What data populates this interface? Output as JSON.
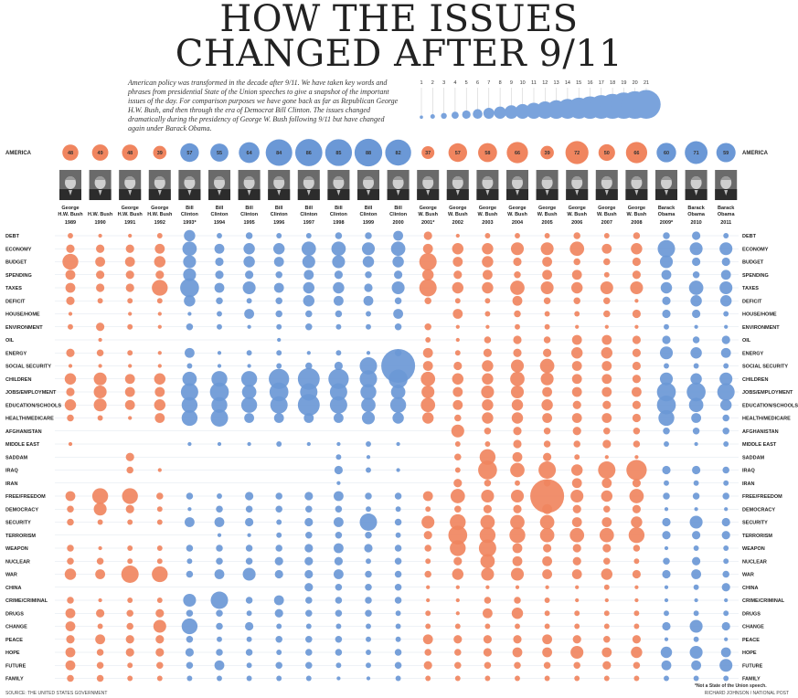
{
  "title_line1": "HOW THE ISSUES",
  "title_line2": "CHANGED AFTER 9/11",
  "intro": "American policy was transformed in the decade after 9/11. We have taken key words and phrases from presidential State of the Union speeches to give a snapshot of the important issues of the day. For comparison purposes we have gone back as far as Republican George H.W. Bush, and then through the era of Democrat Bill Clinton. The issues changed dramatically during the presidency of George W. Bush following 9/11 but have changed again under Barack Obama.",
  "source": "SOURCE: THE UNITED STATES GOVERNMENT",
  "credit": "RICHARD JOHNSON / NATIONAL POST",
  "footnote": "*Not a State of the Union speech.",
  "colors": {
    "republican": "#f0855f",
    "democrat": "#6b98d6",
    "scale": "#7aa3dc"
  },
  "chart_data": {
    "type": "bubble-matrix",
    "title": "HOW THE ISSUES CHANGED AFTER 9/11",
    "size_legend": [
      1,
      2,
      3,
      4,
      5,
      6,
      7,
      8,
      9,
      10,
      11,
      12,
      13,
      14,
      15,
      16,
      17,
      18,
      19,
      20,
      21
    ],
    "america_label": "AMERICA",
    "years": [
      "1989",
      "1990",
      "1991",
      "1992",
      "1993*",
      "1994",
      "1995",
      "1996",
      "1997",
      "1998",
      "1999",
      "2000",
      "2001*",
      "2002",
      "2003",
      "2004",
      "2005",
      "2006",
      "2007",
      "2008",
      "2009*",
      "2010",
      "2011"
    ],
    "presidents": [
      {
        "first": "George",
        "last": "H.W. Bush"
      },
      {
        "first": "",
        "last": "H.W. Bush"
      },
      {
        "first": "George",
        "last": "H.W. Bush"
      },
      {
        "first": "George",
        "last": "H.W. Bush"
      },
      {
        "first": "Bill",
        "last": "Clinton"
      },
      {
        "first": "Bill",
        "last": "Clinton"
      },
      {
        "first": "Bill",
        "last": "Clinton"
      },
      {
        "first": "Bill",
        "last": "Clinton"
      },
      {
        "first": "Bill",
        "last": "Clinton"
      },
      {
        "first": "Bill",
        "last": "Clinton"
      },
      {
        "first": "Bill",
        "last": "Clinton"
      },
      {
        "first": "Bill",
        "last": "Clinton"
      },
      {
        "first": "George",
        "last": "W. Bush"
      },
      {
        "first": "George",
        "last": "W. Bush"
      },
      {
        "first": "George",
        "last": "W. Bush"
      },
      {
        "first": "George",
        "last": "W. Bush"
      },
      {
        "first": "George",
        "last": "W. Bush"
      },
      {
        "first": "George",
        "last": "W. Bush"
      },
      {
        "first": "George",
        "last": "W. Bush"
      },
      {
        "first": "George",
        "last": "W. Bush"
      },
      {
        "first": "Barack",
        "last": "Obama"
      },
      {
        "first": "Barack",
        "last": "Obama"
      },
      {
        "first": "Barack",
        "last": "Obama"
      }
    ],
    "party": [
      "R",
      "R",
      "R",
      "R",
      "D",
      "D",
      "D",
      "D",
      "D",
      "D",
      "D",
      "D",
      "R",
      "R",
      "R",
      "R",
      "R",
      "R",
      "R",
      "R",
      "D",
      "D",
      "D"
    ],
    "america_counts": [
      48,
      49,
      48,
      39,
      57,
      55,
      64,
      84,
      86,
      85,
      88,
      82,
      37,
      57,
      58,
      66,
      39,
      72,
      50,
      66,
      60,
      71,
      59
    ],
    "issues": [
      "DEBT",
      "ECONOMY",
      "BUDGET",
      "SPENDING",
      "TAXES",
      "DEFICIT",
      "HOUSE/HOME",
      "ENVIRONMENT",
      "OIL",
      "ENERGY",
      "SOCIAL SECURITY",
      "CHILDREN",
      "JOBS/EMPLOYMENT",
      "EDUCATION/SCHOOLS",
      "HEALTH/MEDICARE",
      "AFGHANISTAN",
      "MIDDLE EAST",
      "SADDAM",
      "IRAQ",
      "IRAN",
      "FREE/FREEDOM",
      "DEMOCRACY",
      "SECURITY",
      "TERRORISM",
      "WEAPON",
      "NUCLEAR",
      "WAR",
      "CHINA",
      "CRIME/CRIMINAL",
      "DRUGS",
      "CHANGE",
      "PEACE",
      "HOPE",
      "FUTURE",
      "FAMILY"
    ],
    "values": [
      [
        2,
        1,
        1,
        2,
        6,
        2,
        3,
        2,
        2,
        3,
        3,
        5,
        4,
        1,
        2,
        2,
        2,
        3,
        2,
        3,
        3,
        4,
        2
      ],
      [
        4,
        4,
        4,
        5,
        8,
        5,
        6,
        6,
        8,
        8,
        7,
        8,
        5,
        6,
        6,
        7,
        7,
        8,
        5,
        6,
        10,
        7,
        7
      ],
      [
        9,
        5,
        5,
        6,
        7,
        4,
        6,
        5,
        7,
        7,
        6,
        6,
        10,
        5,
        6,
        4,
        5,
        3,
        3,
        4,
        7,
        4,
        4
      ],
      [
        5,
        4,
        4,
        4,
        7,
        4,
        4,
        3,
        5,
        4,
        3,
        4,
        6,
        4,
        5,
        3,
        5,
        5,
        2,
        4,
        5,
        3,
        5
      ],
      [
        5,
        4,
        4,
        9,
        11,
        5,
        7,
        5,
        6,
        6,
        4,
        7,
        10,
        6,
        6,
        8,
        7,
        6,
        7,
        7,
        6,
        8,
        7
      ],
      [
        4,
        2,
        2,
        2,
        6,
        3,
        2,
        3,
        6,
        5,
        5,
        3,
        3,
        2,
        2,
        5,
        3,
        3,
        3,
        1,
        4,
        6,
        6
      ],
      [
        1,
        0,
        1,
        1,
        1,
        2,
        5,
        3,
        3,
        3,
        2,
        5,
        0,
        5,
        2,
        3,
        2,
        2,
        3,
        4,
        4,
        4,
        2
      ],
      [
        2,
        4,
        2,
        1,
        3,
        2,
        1,
        2,
        3,
        2,
        2,
        3,
        3,
        1,
        1,
        2,
        2,
        1,
        1,
        1,
        2,
        1,
        1
      ],
      [
        0,
        1,
        0,
        0,
        0,
        0,
        0,
        1,
        0,
        0,
        0,
        0,
        2,
        1,
        3,
        4,
        3,
        5,
        5,
        4,
        4,
        3,
        4
      ],
      [
        4,
        3,
        2,
        1,
        5,
        1,
        2,
        2,
        1,
        2,
        1,
        3,
        5,
        2,
        4,
        4,
        4,
        6,
        6,
        4,
        7,
        6,
        5
      ],
      [
        1,
        1,
        1,
        1,
        2,
        1,
        1,
        2,
        3,
        4,
        10,
        21,
        5,
        4,
        6,
        7,
        8,
        5,
        5,
        4,
        2,
        2,
        2
      ],
      [
        6,
        7,
        5,
        6,
        8,
        9,
        9,
        12,
        13,
        12,
        10,
        11,
        8,
        6,
        6,
        8,
        7,
        5,
        5,
        4,
        7,
        6,
        7
      ],
      [
        4,
        7,
        5,
        5,
        10,
        11,
        8,
        11,
        10,
        10,
        9,
        8,
        7,
        5,
        7,
        7,
        5,
        5,
        5,
        5,
        11,
        11,
        10
      ],
      [
        6,
        7,
        5,
        6,
        9,
        9,
        9,
        10,
        13,
        10,
        8,
        9,
        8,
        5,
        6,
        6,
        6,
        4,
        4,
        4,
        11,
        8,
        6
      ],
      [
        3,
        2,
        1,
        5,
        9,
        10,
        5,
        5,
        5,
        5,
        7,
        6,
        6,
        3,
        6,
        6,
        5,
        5,
        5,
        4,
        9,
        5,
        3
      ],
      [
        0,
        0,
        0,
        0,
        0,
        0,
        0,
        0,
        0,
        0,
        0,
        0,
        0,
        7,
        3,
        4,
        3,
        4,
        3,
        3,
        3,
        3,
        3
      ],
      [
        1,
        0,
        0,
        0,
        1,
        1,
        1,
        2,
        1,
        1,
        2,
        1,
        0,
        2,
        2,
        4,
        3,
        3,
        4,
        3,
        2,
        1,
        2
      ],
      [
        0,
        0,
        4,
        0,
        0,
        0,
        0,
        0,
        0,
        2,
        1,
        0,
        0,
        3,
        9,
        5,
        4,
        2,
        1,
        1,
        0,
        0,
        0
      ],
      [
        0,
        0,
        3,
        1,
        0,
        0,
        0,
        0,
        0,
        4,
        2,
        1,
        0,
        2,
        11,
        8,
        10,
        6,
        10,
        12,
        4,
        4,
        3
      ],
      [
        0,
        0,
        0,
        0,
        0,
        0,
        0,
        0,
        0,
        1,
        0,
        0,
        0,
        4,
        3,
        2,
        3,
        5,
        5,
        4,
        2,
        2,
        2
      ],
      [
        5,
        9,
        9,
        3,
        3,
        2,
        4,
        3,
        4,
        5,
        3,
        3,
        5,
        8,
        7,
        7,
        21,
        7,
        6,
        8,
        3,
        3,
        3
      ],
      [
        3,
        7,
        4,
        2,
        1,
        3,
        3,
        3,
        3,
        3,
        2,
        2,
        2,
        3,
        4,
        4,
        5,
        4,
        3,
        4,
        1,
        1,
        1
      ],
      [
        3,
        2,
        2,
        2,
        5,
        5,
        4,
        2,
        4,
        5,
        10,
        3,
        7,
        9,
        8,
        8,
        8,
        5,
        5,
        6,
        4,
        7,
        4
      ],
      [
        0,
        0,
        0,
        0,
        0,
        1,
        1,
        2,
        3,
        3,
        3,
        2,
        4,
        11,
        9,
        9,
        8,
        8,
        8,
        9,
        4,
        4,
        4
      ],
      [
        3,
        1,
        2,
        2,
        3,
        3,
        3,
        3,
        4,
        5,
        4,
        3,
        3,
        9,
        10,
        5,
        4,
        4,
        4,
        3,
        1,
        2,
        2
      ],
      [
        3,
        3,
        2,
        2,
        2,
        3,
        3,
        4,
        4,
        4,
        2,
        3,
        2,
        4,
        8,
        5,
        5,
        4,
        3,
        2,
        3,
        4,
        2
      ],
      [
        6,
        5,
        10,
        9,
        3,
        5,
        7,
        4,
        4,
        5,
        3,
        3,
        3,
        6,
        7,
        7,
        5,
        5,
        6,
        4,
        4,
        5,
        3
      ],
      [
        0,
        0,
        0,
        0,
        0,
        0,
        0,
        0,
        4,
        3,
        3,
        3,
        1,
        1,
        1,
        1,
        1,
        1,
        2,
        1,
        1,
        2,
        4
      ],
      [
        3,
        1,
        2,
        2,
        7,
        10,
        3,
        5,
        3,
        3,
        3,
        3,
        1,
        1,
        3,
        3,
        2,
        1,
        1,
        1,
        1,
        1,
        1
      ],
      [
        5,
        4,
        3,
        4,
        3,
        3,
        2,
        4,
        3,
        3,
        3,
        2,
        2,
        1,
        5,
        6,
        2,
        2,
        2,
        2,
        2,
        2,
        2
      ],
      [
        5,
        2,
        3,
        7,
        9,
        3,
        4,
        2,
        2,
        2,
        2,
        2,
        2,
        2,
        2,
        2,
        2,
        2,
        2,
        2,
        4,
        7,
        4
      ],
      [
        4,
        5,
        4,
        4,
        3,
        2,
        2,
        3,
        3,
        3,
        2,
        2,
        5,
        4,
        4,
        4,
        5,
        4,
        3,
        4,
        1,
        2,
        1
      ],
      [
        5,
        3,
        4,
        4,
        4,
        3,
        3,
        2,
        3,
        3,
        2,
        3,
        3,
        3,
        4,
        5,
        5,
        7,
        5,
        6,
        6,
        7,
        5
      ],
      [
        5,
        3,
        2,
        3,
        3,
        5,
        2,
        3,
        3,
        2,
        2,
        3,
        4,
        3,
        3,
        3,
        3,
        3,
        4,
        3,
        5,
        5,
        7
      ],
      [
        3,
        3,
        2,
        2,
        2,
        2,
        2,
        2,
        2,
        1,
        1,
        2,
        2,
        2,
        2,
        2,
        2,
        2,
        2,
        2,
        2,
        2,
        2
      ]
    ]
  }
}
